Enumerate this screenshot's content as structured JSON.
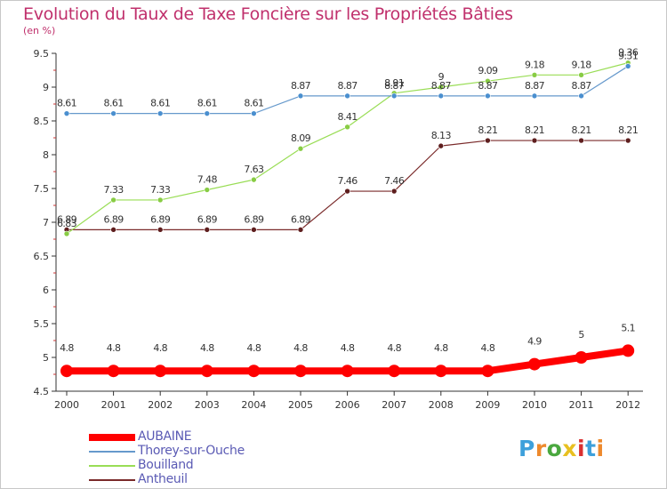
{
  "title": "Evolution du Taux de Taxe Foncière sur les Propriétés Bâties",
  "unit_label": "(en %)",
  "logo": "Proxiti",
  "logo_colors": [
    "#3ea0db",
    "#ee8a2d",
    "#4aa83f",
    "#e8c020",
    "#d93030",
    "#3ea0db",
    "#ee8a2d"
  ],
  "chart_data": {
    "type": "line",
    "x": [
      "2000",
      "2001",
      "2002",
      "2003",
      "2004",
      "2005",
      "2006",
      "2007",
      "2008",
      "2009",
      "2010",
      "2011",
      "2012"
    ],
    "ylim": [
      4.5,
      9.5
    ],
    "yticks": [
      "4.5",
      "5",
      "5.5",
      "6",
      "6.5",
      "7",
      "7.5",
      "8",
      "8.5",
      "9",
      "9.5"
    ],
    "grid": false,
    "legend_position": "bottom-left",
    "series": [
      {
        "name": "AUBAINE",
        "color": "#ff0000",
        "values": [
          4.8,
          4.8,
          4.8,
          4.8,
          4.8,
          4.8,
          4.8,
          4.8,
          4.8,
          4.8,
          4.9,
          5,
          5.1
        ],
        "labels": [
          "4.8",
          "4.8",
          "4.8",
          "4.8",
          "4.8",
          "4.8",
          "4.8",
          "4.8",
          "4.8",
          "4.8",
          "4.9",
          "5",
          "5.1"
        ]
      },
      {
        "name": "Thorey-sur-Ouche",
        "color": "#6699cc",
        "values": [
          8.61,
          8.61,
          8.61,
          8.61,
          8.61,
          8.87,
          8.87,
          8.87,
          8.87,
          8.87,
          8.87,
          8.87,
          9.31
        ],
        "labels": [
          "8.61",
          "8.61",
          "8.61",
          "8.61",
          "8.61",
          "8.87",
          "8.87",
          "8.87",
          "8.87",
          "8.87",
          "8.87",
          "8.87",
          "9.31"
        ]
      },
      {
        "name": "Bouilland",
        "color": "#99dd55",
        "values": [
          6.83,
          7.33,
          7.33,
          7.48,
          7.63,
          8.09,
          8.41,
          8.91,
          9,
          9.09,
          9.18,
          9.18,
          9.36
        ],
        "labels": [
          "6.83",
          "7.33",
          "7.33",
          "7.48",
          "7.63",
          "8.09",
          "8.41",
          "8.91",
          "9",
          "9.09",
          "9.18",
          "9.18",
          "9.36"
        ]
      },
      {
        "name": "Antheuil",
        "color": "#7a2a2a",
        "values": [
          6.89,
          6.89,
          6.89,
          6.89,
          6.89,
          6.89,
          7.46,
          7.46,
          8.13,
          8.21,
          8.21,
          8.21,
          8.21
        ],
        "labels": [
          "6.89",
          "6.89",
          "6.89",
          "6.89",
          "6.89",
          "6.89",
          "7.46",
          "7.46",
          "8.13",
          "8.21",
          "8.21",
          "8.21",
          "8.21"
        ]
      }
    ]
  }
}
